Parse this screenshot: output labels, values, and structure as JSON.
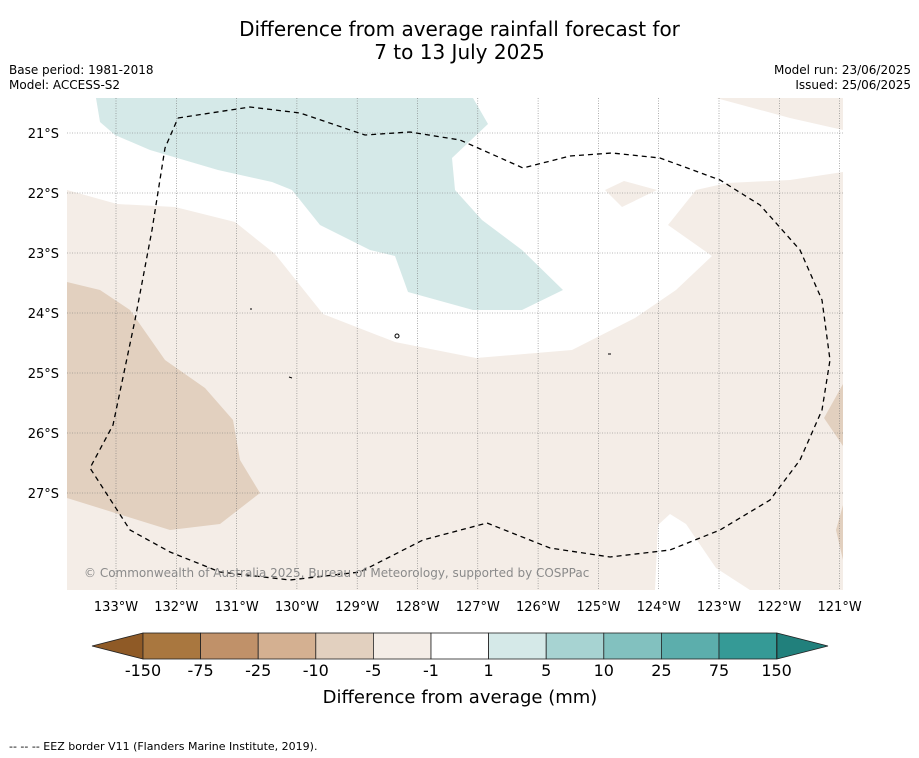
{
  "title": {
    "line1": "Difference from average rainfall forecast for",
    "line2": "7 to 13 July 2025"
  },
  "meta": {
    "base_period": "Base period: 1981-2018",
    "model": "Model: ACCESS-S2",
    "model_run": "Model run: 23/06/2025",
    "issued": "Issued: 25/06/2025"
  },
  "map": {
    "lat_labels": [
      "21°S",
      "22°S",
      "23°S",
      "24°S",
      "25°S",
      "26°S",
      "27°S"
    ],
    "lon_labels": [
      "133°W",
      "132°W",
      "131°W",
      "130°W",
      "129°W",
      "128°W",
      "127°W",
      "126°W",
      "125°W",
      "124°W",
      "123°W",
      "122°W",
      "121°W"
    ],
    "copyright": "© Commonwealth of Australia 2025, Bureau of Meteorology, supported by COSPPac"
  },
  "legend": {
    "tick_labels": [
      "-150",
      "-75",
      "-25",
      "-10",
      "-5",
      "-1",
      "1",
      "5",
      "10",
      "25",
      "75",
      "150"
    ],
    "colors": [
      "#a9773f",
      "#c09169",
      "#d4b091",
      "#e2d0bf",
      "#f4ede7",
      "#ffffff",
      "#d5e9e8",
      "#a7d3d2",
      "#82c1bf",
      "#5caeac",
      "#359a96"
    ],
    "low_extend_color": "#8f5a26",
    "high_extend_color": "#21807c",
    "label": "Difference from average (mm)"
  },
  "footer": {
    "eez_note": "-- -- -- EEZ border V11 (Flanders Marine Institute, 2019)."
  }
}
